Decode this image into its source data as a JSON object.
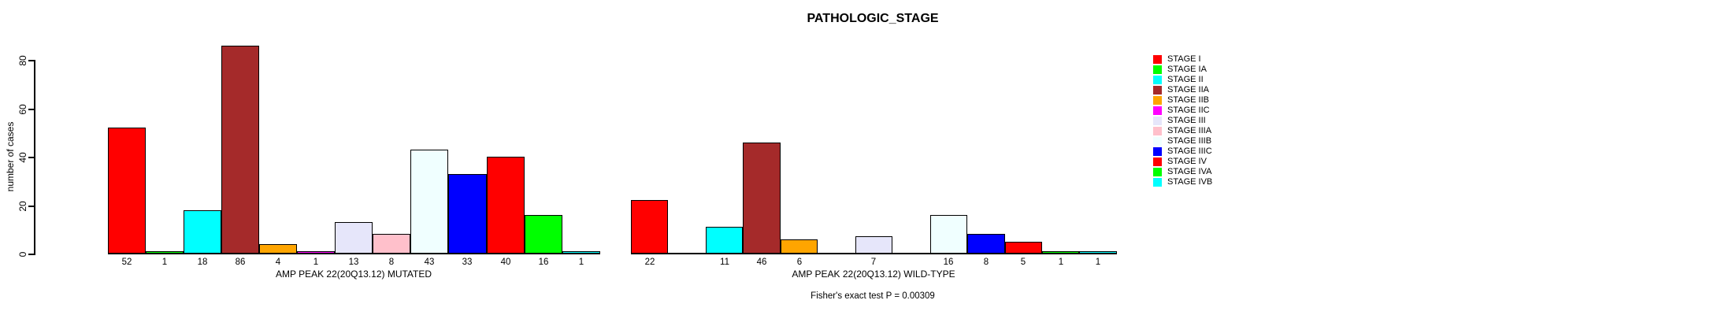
{
  "title": "PATHOLOGIC_STAGE",
  "annotation": "Fisher's exact test P = 0.00309",
  "chart_data": {
    "type": "bar",
    "title": "PATHOLOGIC_STAGE",
    "xlabel": "",
    "ylabel": "number of cases",
    "ylim": [
      0,
      80
    ],
    "yticks": [
      "0",
      "20",
      "40",
      "60",
      "80"
    ],
    "grid": false,
    "legend_position": "right",
    "categories": [
      "STAGE I",
      "STAGE IA",
      "STAGE II",
      "STAGE IIA",
      "STAGE IIB",
      "STAGE IIC",
      "STAGE III",
      "STAGE IIIA",
      "STAGE IIIB",
      "STAGE IIIC",
      "STAGE IV",
      "STAGE IVA",
      "STAGE IVB"
    ],
    "colors": [
      "#FF0000",
      "#00FF00",
      "#00FFFF",
      "#A52A2A",
      "#FFA500",
      "#FF00FF",
      "#E6E6FA",
      "#FFC0CB",
      "#F0FFFF",
      "#0000FF",
      "#FF0000",
      "#00FF00",
      "#00FFFF"
    ],
    "series": [
      {
        "name": "AMP PEAK 22(20Q13.12) MUTATED",
        "values": [
          52,
          1,
          18,
          86,
          4,
          1,
          13,
          8,
          43,
          33,
          40,
          16,
          1
        ]
      },
      {
        "name": "AMP PEAK 22(20Q13.12) WILD-TYPE",
        "values": [
          22,
          0,
          11,
          46,
          6,
          0,
          7,
          0,
          16,
          8,
          5,
          1,
          1
        ]
      }
    ],
    "annotation": "Fisher's exact test P = 0.00309"
  }
}
